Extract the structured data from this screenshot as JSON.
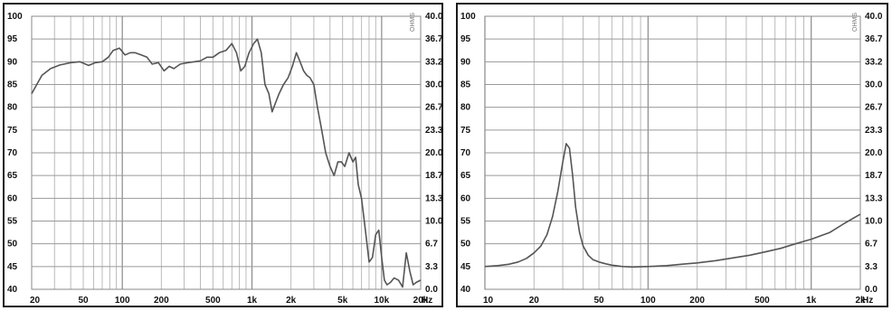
{
  "chart_data": [
    {
      "type": "line",
      "title": "",
      "xlabel": "Hz",
      "ylabel": "",
      "x_scale": "log",
      "xlim": [
        20,
        20000
      ],
      "ylim": [
        40,
        100
      ],
      "grid": true,
      "x_ticks": [
        20,
        50,
        100,
        200,
        500,
        1000,
        2000,
        5000,
        10000,
        20000
      ],
      "x_tick_labels": [
        "20",
        "50",
        "100",
        "200",
        "500",
        "1k",
        "2k",
        "5k",
        "10k",
        "20k"
      ],
      "y_ticks": [
        100,
        95,
        90,
        85,
        80,
        75,
        70,
        65,
        60,
        55,
        50,
        45,
        40
      ],
      "y_tick_labels": [
        "100",
        "95",
        "90",
        "85",
        "80",
        "75",
        "70",
        "65",
        "60",
        "55",
        "50",
        "45",
        "40"
      ],
      "right_axis_label": "OHMS",
      "right_ticks": [
        "40.0",
        "36.7",
        "33.2",
        "30.0",
        "26.7",
        "23.3",
        "20.0",
        "18.7",
        "13.3",
        "10.0",
        "6.7",
        "3.3",
        "0.0"
      ],
      "color": "#555555",
      "series": [
        {
          "x": [
            20,
            24,
            28,
            33,
            40,
            47,
            55,
            62,
            70,
            78,
            85,
            95,
            105,
            115,
            125,
            140,
            155,
            170,
            190,
            210,
            230,
            250,
            280,
            320,
            360,
            400,
            450,
            500,
            560,
            630,
            700,
            760,
            820,
            880,
            950,
            1030,
            1100,
            1180,
            1260,
            1350,
            1430,
            1520,
            1620,
            1750,
            1900,
            2050,
            2200,
            2350,
            2500,
            2650,
            2800,
            3000,
            3200,
            3450,
            3700,
            4000,
            4300,
            4600,
            4900,
            5200,
            5600,
            6000,
            6300,
            6600,
            7000,
            7500,
            8000,
            8500,
            9000,
            9500,
            10000,
            10500,
            11000,
            11700,
            12500,
            13500,
            14500,
            15500,
            16500,
            17500,
            18500,
            20000
          ],
          "y": [
            83,
            87,
            88.5,
            89.3,
            89.8,
            90,
            89.2,
            89.8,
            90,
            91,
            92.5,
            93,
            91.5,
            92,
            92,
            91.5,
            91,
            89.5,
            89.8,
            88,
            89,
            88.5,
            89.5,
            89.8,
            90,
            90.2,
            91,
            91,
            92,
            92.5,
            94,
            92,
            88,
            89,
            92,
            94,
            95,
            92,
            85,
            83,
            79,
            81,
            83,
            85,
            86.5,
            89,
            92,
            90,
            88,
            87,
            86.5,
            85,
            80,
            75,
            70,
            67,
            65,
            68,
            68,
            67,
            70,
            68,
            69,
            63,
            60,
            53,
            46,
            47,
            52,
            53,
            47,
            42,
            41,
            41.5,
            42.5,
            42,
            40.5,
            48,
            44,
            41,
            41.5,
            42
          ]
        }
      ]
    },
    {
      "type": "line",
      "title": "",
      "xlabel": "Hz",
      "ylabel": "",
      "x_scale": "log",
      "xlim": [
        10,
        2000
      ],
      "ylim": [
        40,
        100
      ],
      "grid": true,
      "x_ticks": [
        10,
        20,
        50,
        100,
        200,
        500,
        1000,
        2000
      ],
      "x_tick_labels": [
        "10",
        "20",
        "50",
        "100",
        "200",
        "500",
        "1k",
        "2k"
      ],
      "y_ticks": [
        100,
        95,
        90,
        85,
        80,
        75,
        70,
        65,
        60,
        55,
        50,
        45,
        40
      ],
      "y_tick_labels": [
        "100",
        "95",
        "90",
        "85",
        "80",
        "75",
        "70",
        "65",
        "60",
        "55",
        "50",
        "45",
        "40"
      ],
      "right_axis_label": "OHMS",
      "right_ticks": [
        "40.0",
        "36.7",
        "33.2",
        "30.0",
        "26.7",
        "23.3",
        "20.0",
        "18.7",
        "13.3",
        "10.0",
        "6.7",
        "3.3",
        "0.0"
      ],
      "color": "#555555",
      "series": [
        {
          "x": [
            10,
            12,
            14,
            16,
            18,
            20,
            22,
            24,
            26,
            28,
            30,
            31.5,
            33,
            34.5,
            36,
            38,
            40,
            43,
            46,
            50,
            55,
            60,
            70,
            80,
            100,
            130,
            160,
            200,
            260,
            330,
            420,
            520,
            650,
            800,
            1000,
            1300,
            1600,
            2000
          ],
          "y": [
            45,
            45.2,
            45.5,
            46,
            46.8,
            48,
            49.5,
            52,
            56,
            61.5,
            68,
            72,
            71,
            65,
            58,
            52.5,
            49.5,
            47.5,
            46.5,
            46,
            45.6,
            45.3,
            45,
            44.9,
            45,
            45.2,
            45.5,
            45.8,
            46.3,
            46.9,
            47.5,
            48.2,
            49,
            50,
            51,
            52.5,
            54.5,
            56.5
          ]
        }
      ]
    }
  ]
}
